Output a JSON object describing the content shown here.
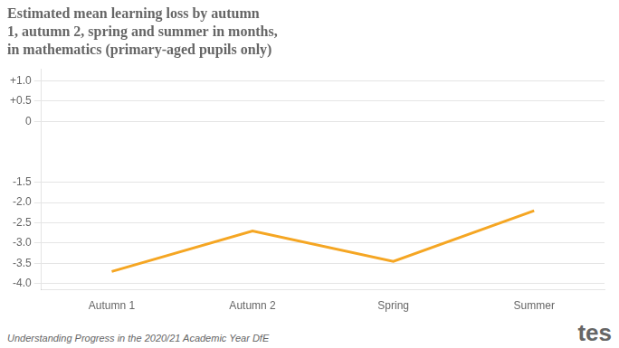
{
  "chart_data": {
    "type": "line",
    "title": "Estimated mean learning loss by autumn\n1, autumn 2, spring and summer in months,\nin mathematics (primary-aged pupils only)",
    "categories": [
      "Autumn 1",
      "Autumn 2",
      "Spring",
      "Summer"
    ],
    "values": [
      -3.7,
      -2.7,
      -3.45,
      -2.2
    ],
    "color": "#f5a623",
    "ylim": [
      -4.15,
      1.3
    ],
    "yticks": [
      {
        "value": 1.0,
        "label": "+1.0"
      },
      {
        "value": 0.5,
        "label": "+0.5"
      },
      0,
      -1.5,
      {
        "value": -2.0,
        "label": "-2.0"
      },
      -2.5,
      {
        "value": -3.0,
        "label": "-3.0"
      },
      -3.5,
      {
        "value": -4.0,
        "label": "-4.0"
      }
    ],
    "grid": "y",
    "annotations": [
      "Understanding Progress in the 2020/21 Academic Year DfE",
      "tes"
    ]
  }
}
